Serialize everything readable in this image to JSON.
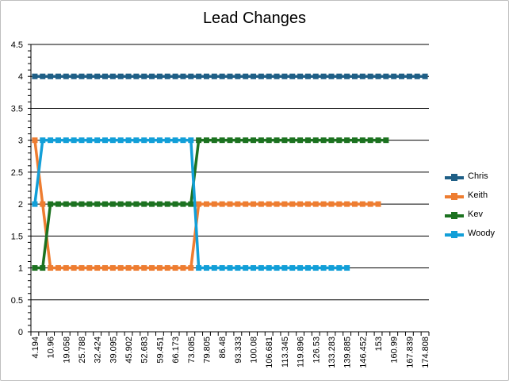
{
  "chart_data": {
    "type": "line",
    "title": "Lead Changes",
    "xlabel": "",
    "ylabel": "",
    "ylim": [
      0,
      4.5
    ],
    "y_ticks": [
      "0",
      "0.5",
      "1",
      "1.5",
      "2",
      "2.5",
      "3",
      "3.5",
      "4",
      "4.5"
    ],
    "x_tick_labels": [
      "4.194",
      "10.96",
      "19.058",
      "25.788",
      "32.424",
      "39.095",
      "45.902",
      "52.683",
      "59.451",
      "66.173",
      "73.085",
      "79.805",
      "86.48",
      "93.333",
      "100.08",
      "106.681",
      "113.345",
      "119.896",
      "126.53",
      "133.283",
      "139.885",
      "146.452",
      "153",
      "160.99",
      "167.839",
      "174.808"
    ],
    "grid": "horizontal",
    "legend_position": "right",
    "point_count": 51,
    "series": [
      {
        "name": "Chris",
        "color": "#1f5f86",
        "values": [
          4,
          4,
          4,
          4,
          4,
          4,
          4,
          4,
          4,
          4,
          4,
          4,
          4,
          4,
          4,
          4,
          4,
          4,
          4,
          4,
          4,
          4,
          4,
          4,
          4,
          4,
          4,
          4,
          4,
          4,
          4,
          4,
          4,
          4,
          4,
          4,
          4,
          4,
          4,
          4,
          4,
          4,
          4,
          4,
          4,
          4,
          4,
          4,
          4,
          4,
          4
        ]
      },
      {
        "name": "Keith",
        "color": "#ee7d31",
        "values": [
          3,
          2,
          1,
          1,
          1,
          1,
          1,
          1,
          1,
          1,
          1,
          1,
          1,
          1,
          1,
          1,
          1,
          1,
          1,
          1,
          1,
          2,
          2,
          2,
          2,
          2,
          2,
          2,
          2,
          2,
          2,
          2,
          2,
          2,
          2,
          2,
          2,
          2,
          2,
          2,
          2,
          2,
          2,
          2,
          2
        ]
      },
      {
        "name": "Kev",
        "color": "#1c7220",
        "values": [
          1,
          1,
          2,
          2,
          2,
          2,
          2,
          2,
          2,
          2,
          2,
          2,
          2,
          2,
          2,
          2,
          2,
          2,
          2,
          2,
          2,
          3,
          3,
          3,
          3,
          3,
          3,
          3,
          3,
          3,
          3,
          3,
          3,
          3,
          3,
          3,
          3,
          3,
          3,
          3,
          3,
          3,
          3,
          3,
          3,
          3
        ]
      },
      {
        "name": "Woody",
        "color": "#129fd8",
        "values": [
          2,
          3,
          3,
          3,
          3,
          3,
          3,
          3,
          3,
          3,
          3,
          3,
          3,
          3,
          3,
          3,
          3,
          3,
          3,
          3,
          3,
          1,
          1,
          1,
          1,
          1,
          1,
          1,
          1,
          1,
          1,
          1,
          1,
          1,
          1,
          1,
          1,
          1,
          1,
          1,
          1
        ]
      }
    ]
  }
}
